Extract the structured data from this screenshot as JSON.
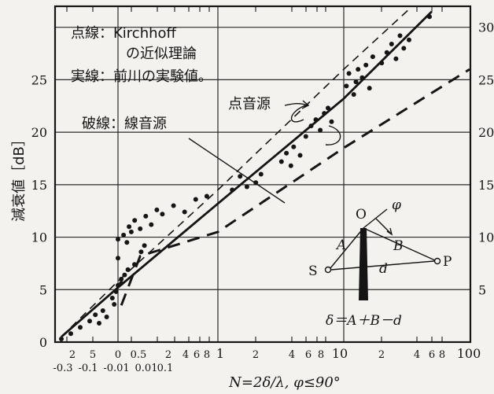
{
  "chart_data": {
    "type": "scatter",
    "xlabel": "N=2δ/λ,  φ≤90°",
    "ylabel": "減衰値［dB］",
    "ylim": [
      0,
      32
    ],
    "y_ticks": [
      0,
      5,
      10,
      15,
      20,
      25
    ],
    "y_ticks_right": [
      5,
      10,
      15,
      20,
      25,
      30
    ],
    "x_scale": "log-symmetric",
    "x_ticks_top": [
      "2",
      "5",
      "0",
      "0.5",
      "2",
      "4",
      "6",
      "8",
      "1",
      "2",
      "4",
      "6",
      "8",
      "10",
      "2",
      "4",
      "6",
      "8",
      "100"
    ],
    "x_ticks_bottom": [
      "-0.3",
      "-0.1",
      "-0.01",
      "0.01",
      "0.1"
    ],
    "legend_notes": {
      "dotted_label": "点線：Kirchhoff",
      "dotted_label_2": "の近似理論",
      "solid_label": "実線：前川の実験値。",
      "dashed_label": "破線：線音源",
      "point_label": "点音源"
    },
    "inset": {
      "O": "O",
      "S": "S",
      "P": "P",
      "A": "A",
      "B": "B",
      "d": "d",
      "phi": "φ",
      "formula": "δ＝A＋B－d"
    },
    "series": [
      {
        "name": "点音源",
        "type": "line",
        "style": "solid",
        "points": [
          [
            -0.3,
            0.5
          ],
          [
            0,
            5.2
          ],
          [
            1,
            13.2
          ],
          [
            10,
            23.2
          ],
          [
            50,
            31.5
          ]
        ]
      },
      {
        "name": "Kirchhoff",
        "type": "line",
        "style": "dashed-thin",
        "points": [
          [
            -0.3,
            0.5
          ],
          [
            0,
            5.8
          ],
          [
            1,
            14.5
          ],
          [
            10,
            26.0
          ],
          [
            35,
            32.0
          ]
        ]
      },
      {
        "name": "線音源",
        "type": "line",
        "style": "dashed-thick",
        "points": [
          [
            0.01,
            3.5
          ],
          [
            0.3,
            8.2
          ],
          [
            1,
            10.5
          ],
          [
            10,
            18.5
          ],
          [
            100,
            26.0
          ]
        ]
      },
      {
        "name": "前川の実験値",
        "type": "scatter",
        "points": [
          [
            -0.3,
            0.3
          ],
          [
            -0.25,
            0.8
          ],
          [
            -0.2,
            1.4
          ],
          [
            -0.15,
            2.0
          ],
          [
            -0.12,
            2.6
          ],
          [
            -0.1,
            1.8
          ],
          [
            -0.08,
            3.0
          ],
          [
            -0.06,
            2.4
          ],
          [
            -0.03,
            4.2
          ],
          [
            -0.02,
            3.6
          ],
          [
            -0.01,
            4.8
          ],
          [
            0,
            5.4
          ],
          [
            0.01,
            6.0
          ],
          [
            0.01,
            5.6
          ],
          [
            0.02,
            6.4
          ],
          [
            0.03,
            6.9
          ],
          [
            0.05,
            7.4
          ],
          [
            0.07,
            8.6
          ],
          [
            0.08,
            9.2
          ],
          [
            0.1,
            9.8
          ],
          [
            0.1,
            8.0
          ],
          [
            0.15,
            10.2
          ],
          [
            0.18,
            9.5
          ],
          [
            0.2,
            11.0
          ],
          [
            0.22,
            10.5
          ],
          [
            0.25,
            11.6
          ],
          [
            0.3,
            10.8
          ],
          [
            0.35,
            12.0
          ],
          [
            0.4,
            11.2
          ],
          [
            0.45,
            12.6
          ],
          [
            0.5,
            12.2
          ],
          [
            0.6,
            13.0
          ],
          [
            0.7,
            12.4
          ],
          [
            0.8,
            13.6
          ],
          [
            0.9,
            13.9
          ],
          [
            1.3,
            14.5
          ],
          [
            1.5,
            15.8
          ],
          [
            1.7,
            14.8
          ],
          [
            2.0,
            15.2
          ],
          [
            2.2,
            16.0
          ],
          [
            3.2,
            17.2
          ],
          [
            3.5,
            18.0
          ],
          [
            3.8,
            16.8
          ],
          [
            4.0,
            18.6
          ],
          [
            4.5,
            17.8
          ],
          [
            5.0,
            19.6
          ],
          [
            5.5,
            20.6
          ],
          [
            6.0,
            21.2
          ],
          [
            6.5,
            20.2
          ],
          [
            7.0,
            21.8
          ],
          [
            7.5,
            22.3
          ],
          [
            8.0,
            21.0
          ],
          [
            10.5,
            24.4
          ],
          [
            11.0,
            25.6
          ],
          [
            12.0,
            23.6
          ],
          [
            12.5,
            24.8
          ],
          [
            13.0,
            26.0
          ],
          [
            14.0,
            25.2
          ],
          [
            15.0,
            26.4
          ],
          [
            16.0,
            24.2
          ],
          [
            17.0,
            27.2
          ],
          [
            20.0,
            26.6
          ],
          [
            22.0,
            27.6
          ],
          [
            24.0,
            28.4
          ],
          [
            26.0,
            27.0
          ],
          [
            28.0,
            29.2
          ],
          [
            30.0,
            28.0
          ],
          [
            33.0,
            28.8
          ],
          [
            48.0,
            31.0
          ]
        ]
      }
    ]
  }
}
